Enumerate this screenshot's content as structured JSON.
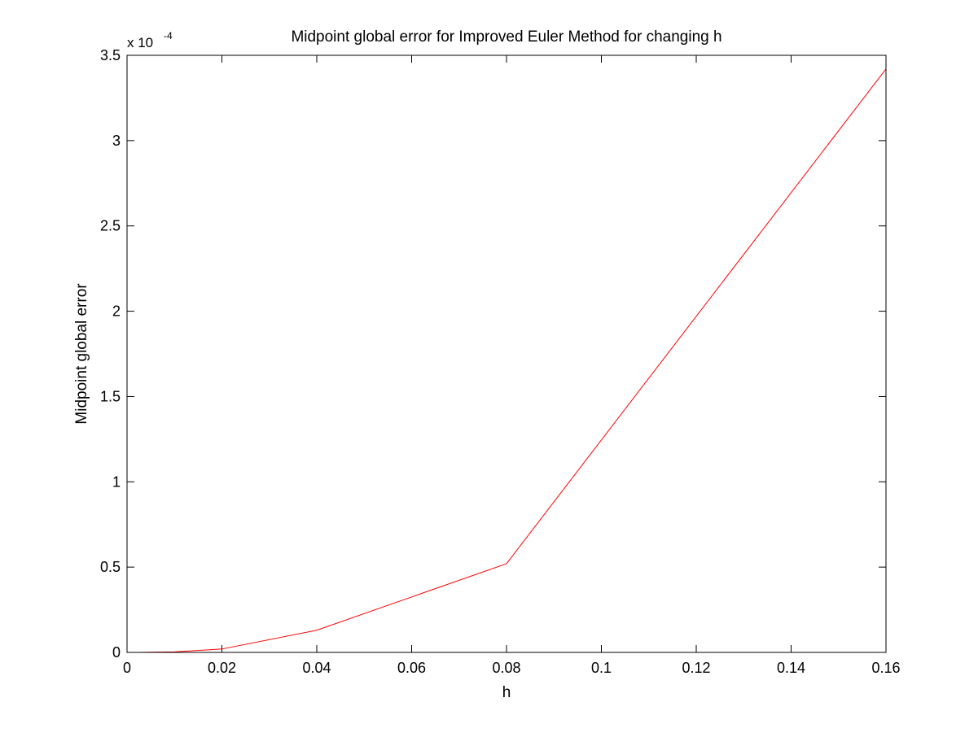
{
  "chart_data": {
    "type": "line",
    "title": "Midpoint global error for Improved Euler Method for changing h",
    "xlabel": "h",
    "ylabel": "Midpoint global error",
    "y_multiplier": {
      "base": "x 10",
      "exponent": "-4"
    },
    "xlim": [
      0,
      0.16
    ],
    "ylim": [
      0,
      3.5
    ],
    "x_ticks": [
      {
        "value": 0,
        "label": "0"
      },
      {
        "value": 0.02,
        "label": "0.02"
      },
      {
        "value": 0.04,
        "label": "0.04"
      },
      {
        "value": 0.06,
        "label": "0.06"
      },
      {
        "value": 0.08,
        "label": "0.08"
      },
      {
        "value": 0.1,
        "label": "0.1"
      },
      {
        "value": 0.12,
        "label": "0.12"
      },
      {
        "value": 0.14,
        "label": "0.14"
      },
      {
        "value": 0.16,
        "label": "0.16"
      }
    ],
    "y_ticks": [
      {
        "value": 0,
        "label": "0"
      },
      {
        "value": 0.5,
        "label": "0.5"
      },
      {
        "value": 1,
        "label": "1"
      },
      {
        "value": 1.5,
        "label": "1.5"
      },
      {
        "value": 2,
        "label": "2"
      },
      {
        "value": 2.5,
        "label": "2.5"
      },
      {
        "value": 3,
        "label": "3"
      },
      {
        "value": 3.5,
        "label": "3.5"
      }
    ],
    "grid": false,
    "series": [
      {
        "color": "#ff0000",
        "x": [
          0.0025,
          0.005,
          0.01,
          0.02,
          0.04,
          0.08,
          0.16
        ],
        "y": [
          0.0003,
          0.001,
          0.003,
          0.02,
          0.13,
          0.52,
          3.42
        ]
      }
    ]
  }
}
